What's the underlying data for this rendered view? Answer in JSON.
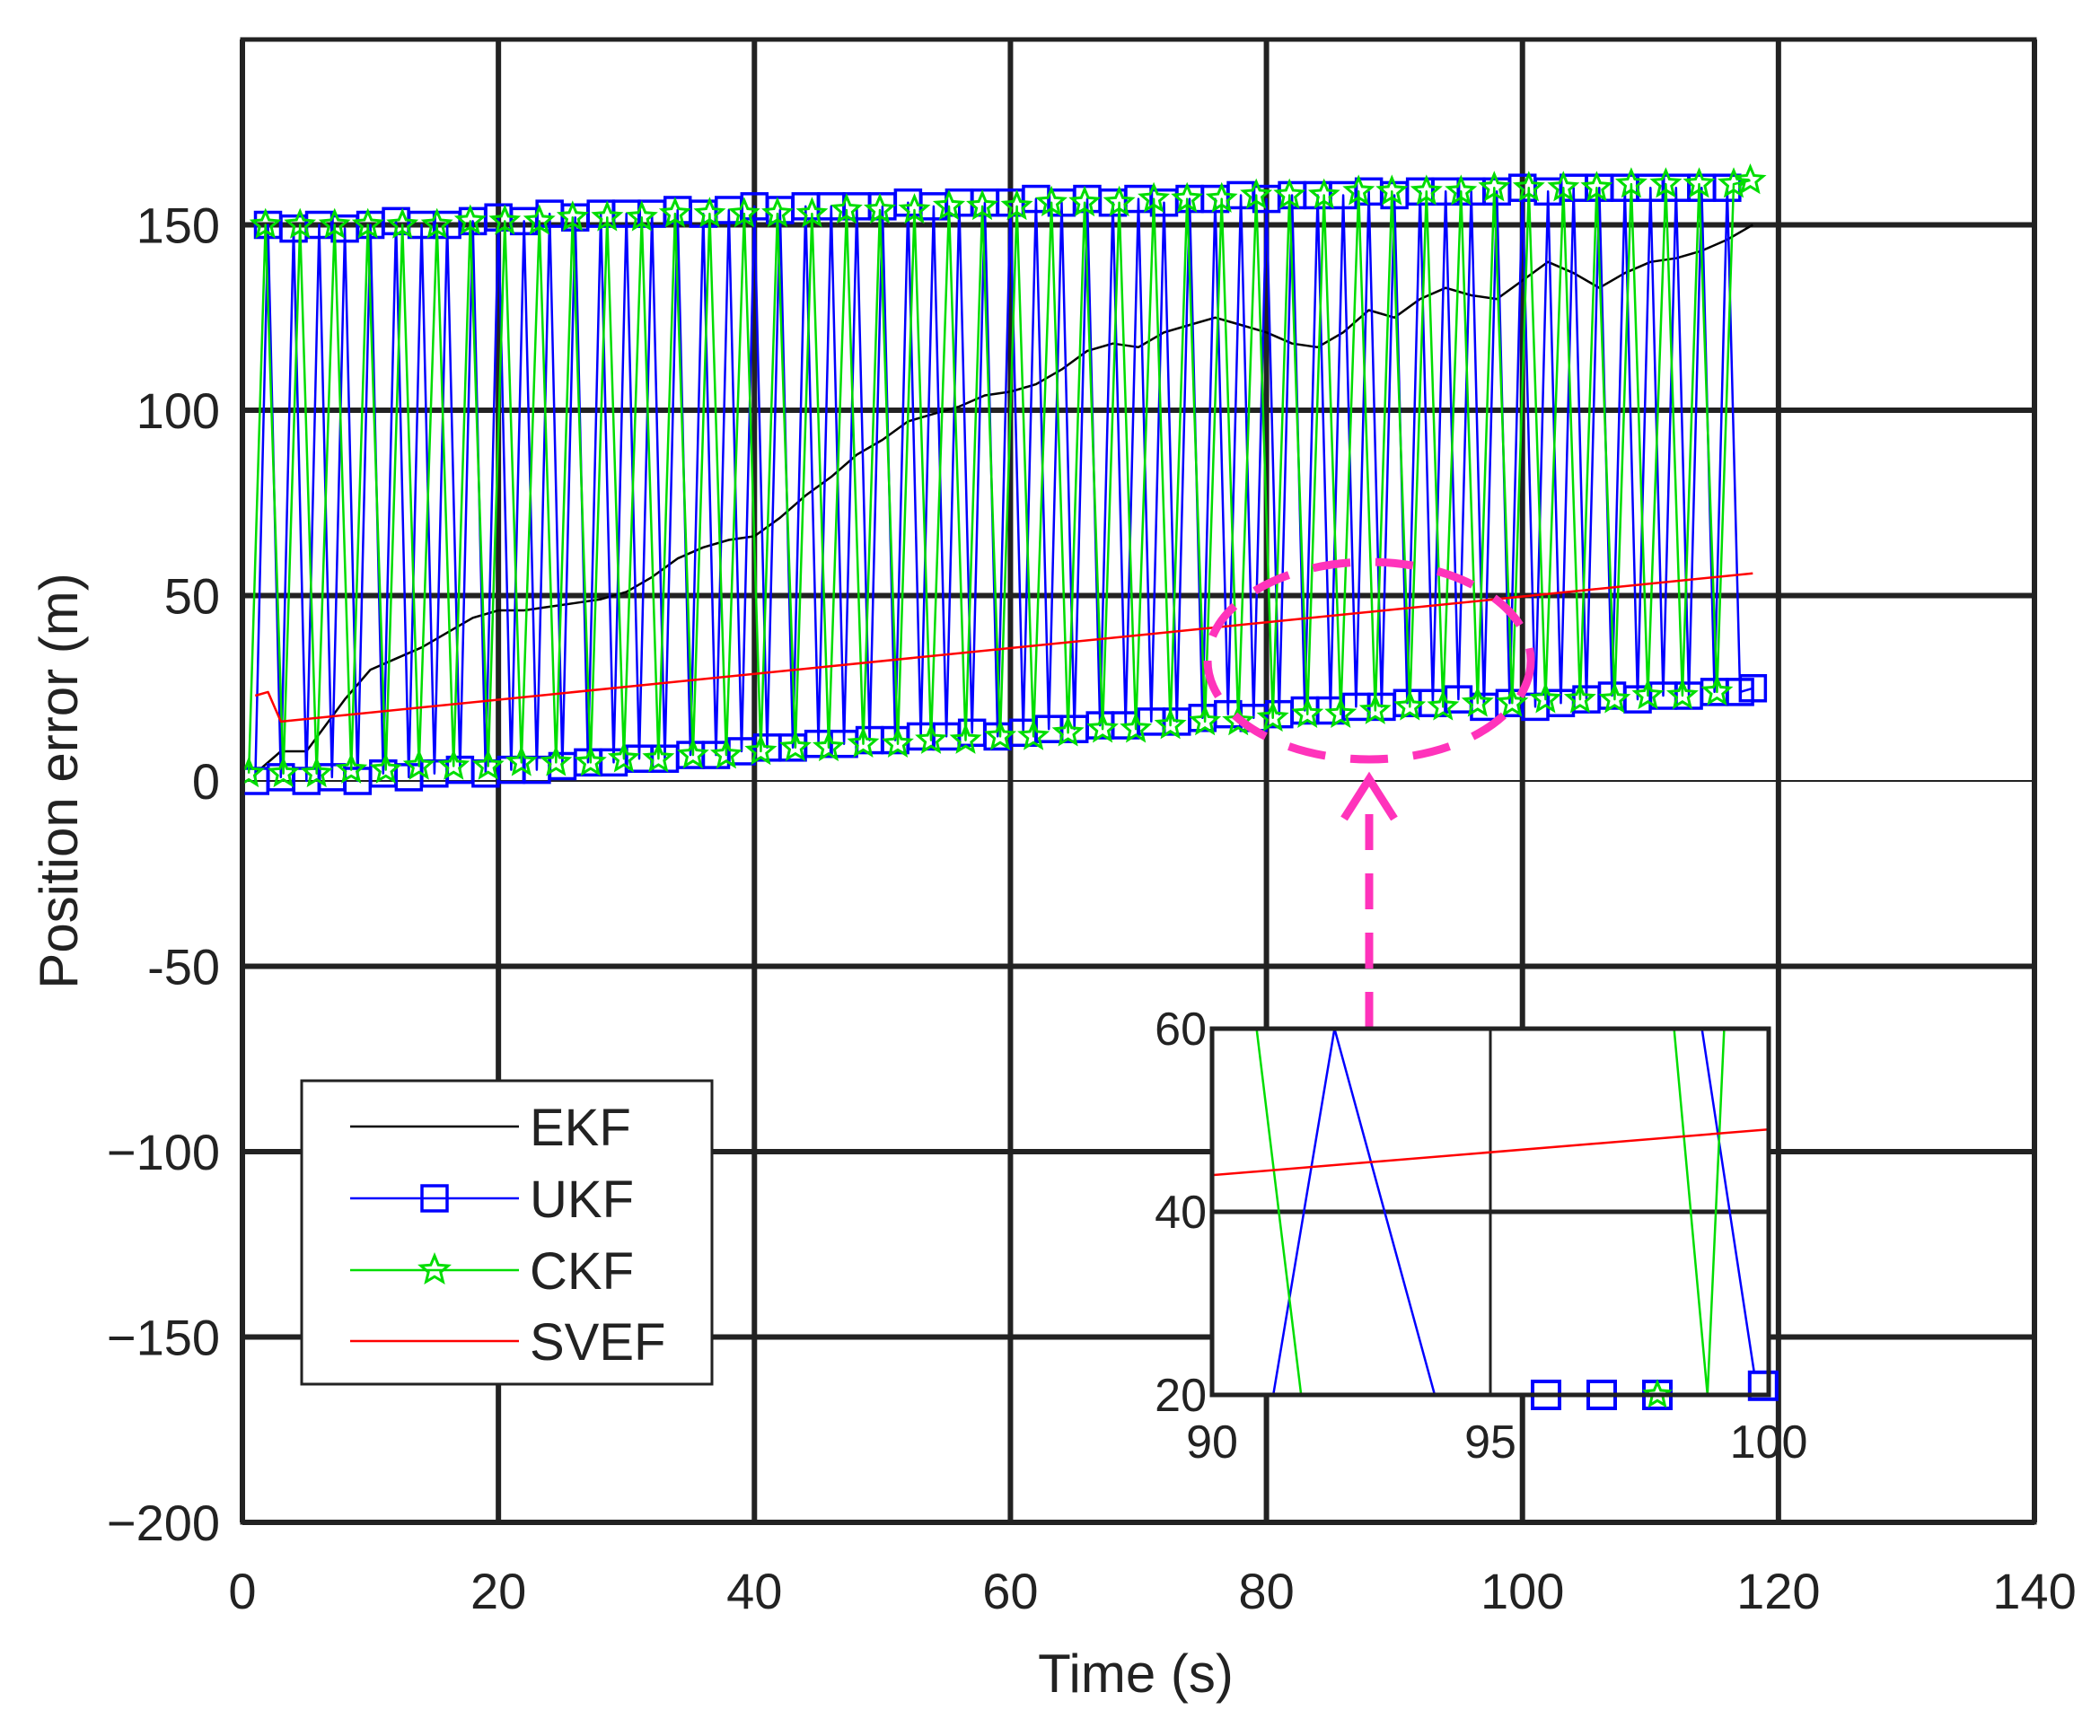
{
  "chart_data": {
    "type": "line",
    "xlabel": "Time (s)",
    "ylabel": "Position error (m)",
    "xlim": [
      0,
      140
    ],
    "ylim": [
      -200,
      200
    ],
    "xticks": [
      0,
      20,
      40,
      60,
      80,
      100,
      120,
      140
    ],
    "yticks": [
      -200,
      -150,
      -100,
      -50,
      0,
      50,
      100,
      150
    ],
    "xtick_labels": [
      "0",
      "20",
      "40",
      "60",
      "80",
      "100",
      "120",
      "140"
    ],
    "ytick_labels": [
      "−200",
      "−150",
      "−100",
      "-50",
      "0",
      "50",
      "100",
      "150"
    ],
    "grid": true,
    "legend_position": "bottom-left",
    "series": [
      {
        "name": "EKF",
        "color": "#000000",
        "marker": "none",
        "x": [
          1,
          3,
          5,
          8,
          10,
          12,
          14,
          16,
          18,
          20,
          22,
          24,
          26,
          28,
          30,
          32,
          34,
          36,
          38,
          40,
          42,
          44,
          46,
          48,
          50,
          52,
          54,
          56,
          58,
          60,
          62,
          64,
          66,
          68,
          70,
          72,
          74,
          76,
          78,
          80,
          82,
          84,
          86,
          88,
          90,
          92,
          94,
          96,
          98,
          100,
          102,
          104,
          106,
          108,
          110,
          112,
          114,
          116,
          118
        ],
        "y": [
          2,
          8,
          8,
          22,
          30,
          33,
          36,
          40,
          44,
          46,
          46,
          47,
          48,
          49,
          51,
          55,
          60,
          63,
          65,
          66,
          71,
          77,
          82,
          88,
          92,
          97,
          99,
          101,
          104,
          105,
          107,
          111,
          116,
          118,
          117,
          121,
          123,
          125,
          123,
          121,
          118,
          117,
          121,
          127,
          125,
          130,
          133,
          131,
          130,
          135,
          140,
          137,
          133,
          137,
          140,
          141,
          143,
          146,
          150
        ]
      },
      {
        "name": "UKF",
        "color": "#0000ff",
        "marker": "square",
        "x": [
          1,
          2,
          3,
          4,
          5,
          6,
          7,
          8,
          9,
          10,
          11,
          12,
          13,
          14,
          15,
          16,
          17,
          18,
          19,
          20,
          21,
          22,
          23,
          24,
          25,
          26,
          27,
          28,
          29,
          30,
          31,
          32,
          33,
          34,
          35,
          36,
          37,
          38,
          39,
          40,
          41,
          42,
          43,
          44,
          45,
          46,
          47,
          48,
          49,
          50,
          51,
          52,
          53,
          54,
          55,
          56,
          57,
          58,
          59,
          60,
          61,
          62,
          63,
          64,
          65,
          66,
          67,
          68,
          69,
          70,
          71,
          72,
          73,
          74,
          75,
          76,
          77,
          78,
          79,
          80,
          81,
          82,
          83,
          84,
          85,
          86,
          87,
          88,
          89,
          90,
          91,
          92,
          93,
          94,
          95,
          96,
          97,
          98,
          99,
          100,
          101,
          102,
          103,
          104,
          105,
          106,
          107,
          108,
          109,
          110,
          111,
          112,
          113,
          114,
          115,
          116,
          117,
          118
        ],
        "y": [
          0,
          150,
          1,
          149,
          0,
          150,
          1,
          149,
          0,
          150,
          2,
          151,
          1,
          150,
          2,
          150,
          3,
          151,
          2,
          152,
          3,
          151,
          3,
          153,
          4,
          152,
          5,
          153,
          5,
          153,
          6,
          153,
          6,
          154,
          7,
          153,
          7,
          154,
          8,
          155,
          9,
          154,
          9,
          155,
          10,
          155,
          10,
          155,
          11,
          155,
          11,
          156,
          12,
          155,
          12,
          156,
          13,
          156,
          12,
          156,
          13,
          157,
          14,
          156,
          14,
          157,
          15,
          156,
          15,
          157,
          16,
          156,
          16,
          157,
          17,
          157,
          18,
          158,
          17,
          157,
          18,
          158,
          19,
          158,
          19,
          158,
          20,
          159,
          20,
          158,
          21,
          159,
          21,
          159,
          22,
          159,
          20,
          159,
          21,
          160,
          20,
          159,
          21,
          160,
          22,
          160,
          23,
          160,
          22,
          160,
          23,
          160,
          23,
          160,
          24,
          160,
          24,
          25
        ]
      },
      {
        "name": "CKF",
        "color": "#00dd00",
        "marker": "star",
        "x": [
          0.5,
          1.8,
          3.2,
          4.5,
          5.8,
          7.2,
          8.5,
          9.8,
          11.2,
          12.5,
          13.8,
          15.2,
          16.5,
          17.8,
          19.2,
          20.5,
          21.8,
          23.2,
          24.5,
          25.8,
          27.2,
          28.5,
          29.8,
          31.2,
          32.5,
          33.8,
          35.2,
          36.5,
          37.8,
          39.2,
          40.5,
          41.8,
          43.2,
          44.5,
          45.8,
          47.2,
          48.5,
          49.8,
          51.2,
          52.5,
          53.8,
          55.2,
          56.5,
          57.8,
          59.2,
          60.5,
          61.8,
          63.2,
          64.5,
          65.8,
          67.2,
          68.5,
          69.8,
          71.2,
          72.5,
          73.8,
          75.2,
          76.5,
          77.8,
          79.2,
          80.5,
          81.8,
          83.2,
          84.5,
          85.8,
          87.2,
          88.5,
          89.8,
          91.2,
          92.5,
          93.8,
          95.2,
          96.5,
          97.8,
          99.2,
          100.5,
          101.8,
          103.2,
          104.5,
          105.8,
          107.2,
          108.5,
          109.8,
          111.2,
          112.5,
          113.8,
          115.2,
          116.5,
          117.8
        ],
        "y": [
          2,
          150,
          2,
          150,
          2,
          150,
          3,
          150,
          3,
          150,
          4,
          150,
          4,
          151,
          4,
          151,
          5,
          151,
          5,
          152,
          5,
          152,
          6,
          152,
          6,
          153,
          7,
          153,
          7,
          153,
          8,
          153,
          9,
          153,
          9,
          154,
          10,
          154,
          10,
          154,
          11,
          155,
          11,
          155,
          12,
          155,
          12,
          156,
          13,
          156,
          14,
          156,
          14,
          157,
          15,
          157,
          16,
          157,
          16,
          158,
          17,
          158,
          18,
          158,
          18,
          159,
          19,
          159,
          20,
          159,
          20,
          159,
          21,
          160,
          21,
          160,
          22,
          160,
          22,
          160,
          22,
          161,
          23,
          161,
          23,
          161,
          24,
          161,
          162
        ]
      },
      {
        "name": "SVEF",
        "color": "#ff0000",
        "marker": "none",
        "x": [
          1,
          2,
          3,
          118
        ],
        "y": [
          23,
          24,
          16,
          56
        ]
      }
    ],
    "inset": {
      "xlim": [
        90,
        100
      ],
      "ylim": [
        20,
        60
      ],
      "xticks": [
        90,
        95,
        100
      ],
      "yticks": [
        20,
        40,
        60
      ],
      "xtick_labels": [
        "90",
        "95",
        "100"
      ],
      "ytick_labels": [
        "20",
        "40",
        "60"
      ],
      "svef": {
        "x": [
          90,
          100
        ],
        "y": [
          44,
          49
        ]
      },
      "ukf_lines": [
        [
          [
            91.1,
            20
          ],
          [
            92.2,
            60
          ]
        ],
        [
          [
            92.2,
            60
          ],
          [
            94.0,
            20
          ]
        ],
        [
          [
            98.8,
            60
          ],
          [
            99.8,
            20
          ]
        ]
      ],
      "ckf_lines": [
        [
          [
            90.8,
            60
          ],
          [
            91.6,
            20
          ]
        ],
        [
          [
            98.3,
            60
          ],
          [
            98.9,
            20
          ]
        ],
        [
          [
            98.9,
            20
          ],
          [
            99.2,
            60
          ]
        ]
      ],
      "ukf_markers": [
        [
          96.0,
          20
        ],
        [
          97.0,
          20
        ],
        [
          98.0,
          20
        ],
        [
          99.9,
          21
        ]
      ],
      "ckf_markers": [
        [
          98.0,
          20
        ]
      ]
    }
  }
}
